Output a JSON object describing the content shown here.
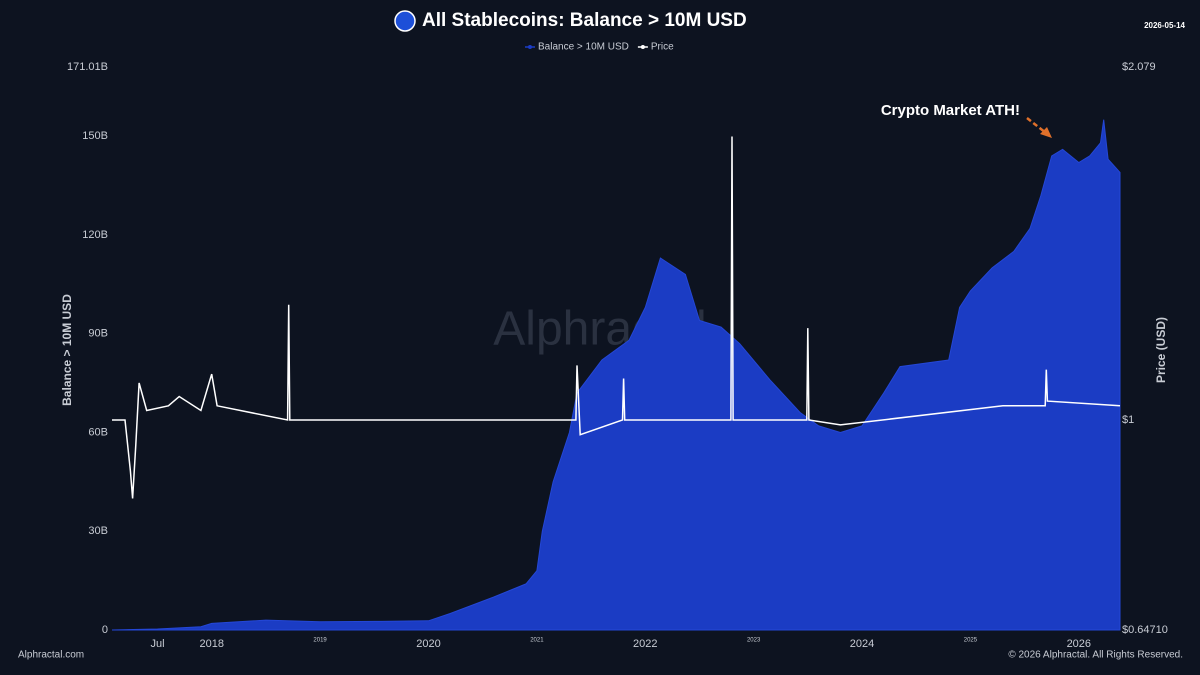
{
  "chart_data": {
    "type": "area-line",
    "title": "All Stablecoins: Balance > 10M USD",
    "date": "2026-05-14",
    "watermark": "Alphractal",
    "footer_left": "Alphractal.com",
    "footer_right": "© 2026 Alphractal. All Rights Reserved.",
    "annotation": "Crypto Market ATH!",
    "ylabel": "Balance > 10M USD",
    "y2label": "Price (USD)",
    "xlim": [
      2017.08,
      2026.38
    ],
    "xticks": [
      {
        "value": 2017.5,
        "label": "Jul"
      },
      2018,
      2019,
      2020,
      2021,
      2022,
      2023,
      2024,
      2025,
      2026
    ],
    "ylim": [
      0,
      171.01
    ],
    "yticks": [
      0,
      {
        "value": 30,
        "label": "30B"
      },
      {
        "value": 60,
        "label": "60B"
      },
      {
        "value": 90,
        "label": "90B"
      },
      {
        "value": 120,
        "label": "120B"
      },
      {
        "value": 150,
        "label": "150B"
      },
      {
        "value": 171.01,
        "label": "171.01B"
      }
    ],
    "y2lim": [
      0.6471,
      2.079
    ],
    "y2scale": "log",
    "y2ticks": [
      {
        "value": 0.6471,
        "label": "$0.64710"
      },
      {
        "value": 1,
        "label": "$1"
      },
      {
        "value": 2.079,
        "label": "$2.079"
      }
    ],
    "series": [
      {
        "name": "Balance > 10M USD",
        "color": "#1b3cc4",
        "x": [
          2017.08,
          2017.5,
          2017.9,
          2018.0,
          2018.5,
          2019.0,
          2019.5,
          2020.0,
          2020.2,
          2020.6,
          2020.9,
          2021.0,
          2021.05,
          2021.15,
          2021.3,
          2021.37,
          2021.6,
          2021.85,
          2022.0,
          2022.14,
          2022.37,
          2022.5,
          2022.7,
          2022.87,
          2023.15,
          2023.43,
          2023.6,
          2023.8,
          2024.0,
          2024.2,
          2024.35,
          2024.8,
          2024.9,
          2025.0,
          2025.2,
          2025.4,
          2025.55,
          2025.65,
          2025.75,
          2025.85,
          2026.0,
          2026.1,
          2026.2,
          2026.23,
          2026.27,
          2026.38
        ],
        "values": [
          0,
          0.3,
          1,
          2,
          3,
          2.5,
          2.6,
          2.8,
          5,
          10,
          14,
          18,
          30,
          45,
          60,
          72,
          82,
          88,
          98,
          113,
          108,
          94,
          92,
          87,
          76,
          66,
          62,
          60,
          62,
          72,
          80,
          82,
          98,
          103,
          110,
          115,
          122,
          132,
          144,
          146,
          142,
          144,
          148,
          155,
          143,
          139
        ]
      },
      {
        "name": "Price",
        "color": "#ffffff",
        "axis": "y2",
        "x": [
          2017.08,
          2017.2,
          2017.25,
          2017.27,
          2017.3,
          2017.33,
          2017.4,
          2017.6,
          2017.7,
          2017.9,
          2018.0,
          2018.05,
          2018.7,
          2018.71,
          2018.72,
          2021.36,
          2021.37,
          2021.4,
          2021.79,
          2021.8,
          2021.81,
          2022.79,
          2022.8,
          2022.81,
          2023.49,
          2023.5,
          2023.51,
          2023.8,
          2025.3,
          2025.69,
          2025.7,
          2025.71,
          2026.38
        ],
        "values": [
          1.0,
          1.0,
          0.9,
          0.85,
          0.95,
          1.08,
          1.02,
          1.03,
          1.05,
          1.02,
          1.1,
          1.03,
          1.0,
          1.27,
          1.0,
          1.0,
          1.12,
          0.97,
          1.0,
          1.09,
          1.0,
          1.0,
          1.8,
          1.0,
          1.0,
          1.21,
          1.0,
          0.99,
          1.03,
          1.03,
          1.11,
          1.04,
          1.03
        ]
      }
    ]
  }
}
